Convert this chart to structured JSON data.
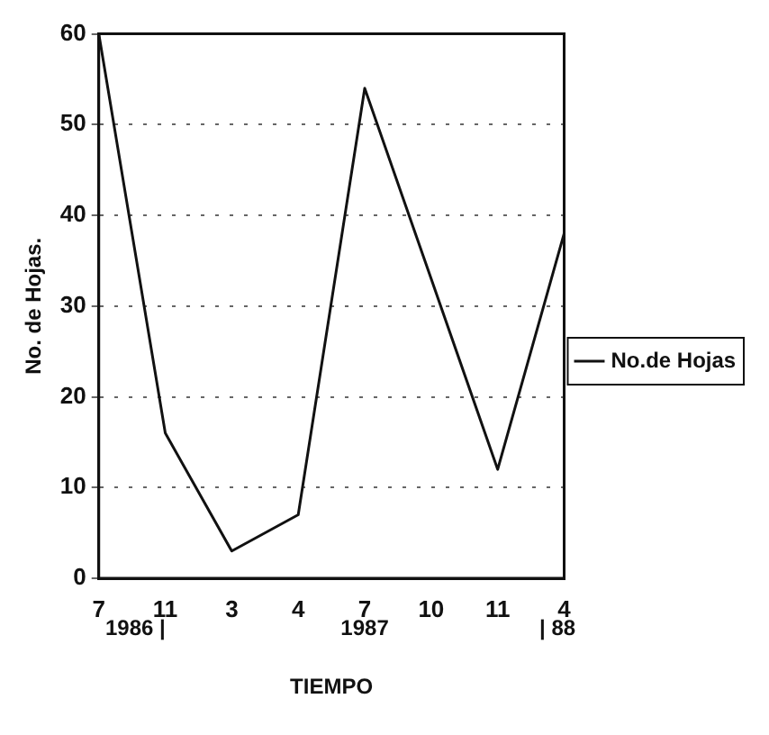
{
  "chart_data": {
    "type": "line",
    "xlabel": "TIEMPO",
    "ylabel": "No. de Hojas.",
    "categories": [
      "7",
      "11",
      "3",
      "4",
      "7",
      "10",
      "11",
      "4"
    ],
    "series": [
      {
        "name": "No.de Hojas",
        "color": "#111111",
        "values": [
          60,
          16,
          3,
          7,
          54,
          33,
          12,
          38
        ]
      }
    ],
    "ylim": [
      0,
      60
    ],
    "yticks": [
      0,
      10,
      20,
      30,
      40,
      50,
      60
    ],
    "grid": "y",
    "legend": "right",
    "marker": "none",
    "line_style": "solid",
    "annotations": [
      "1986 |",
      "1987",
      "| 88"
    ]
  }
}
